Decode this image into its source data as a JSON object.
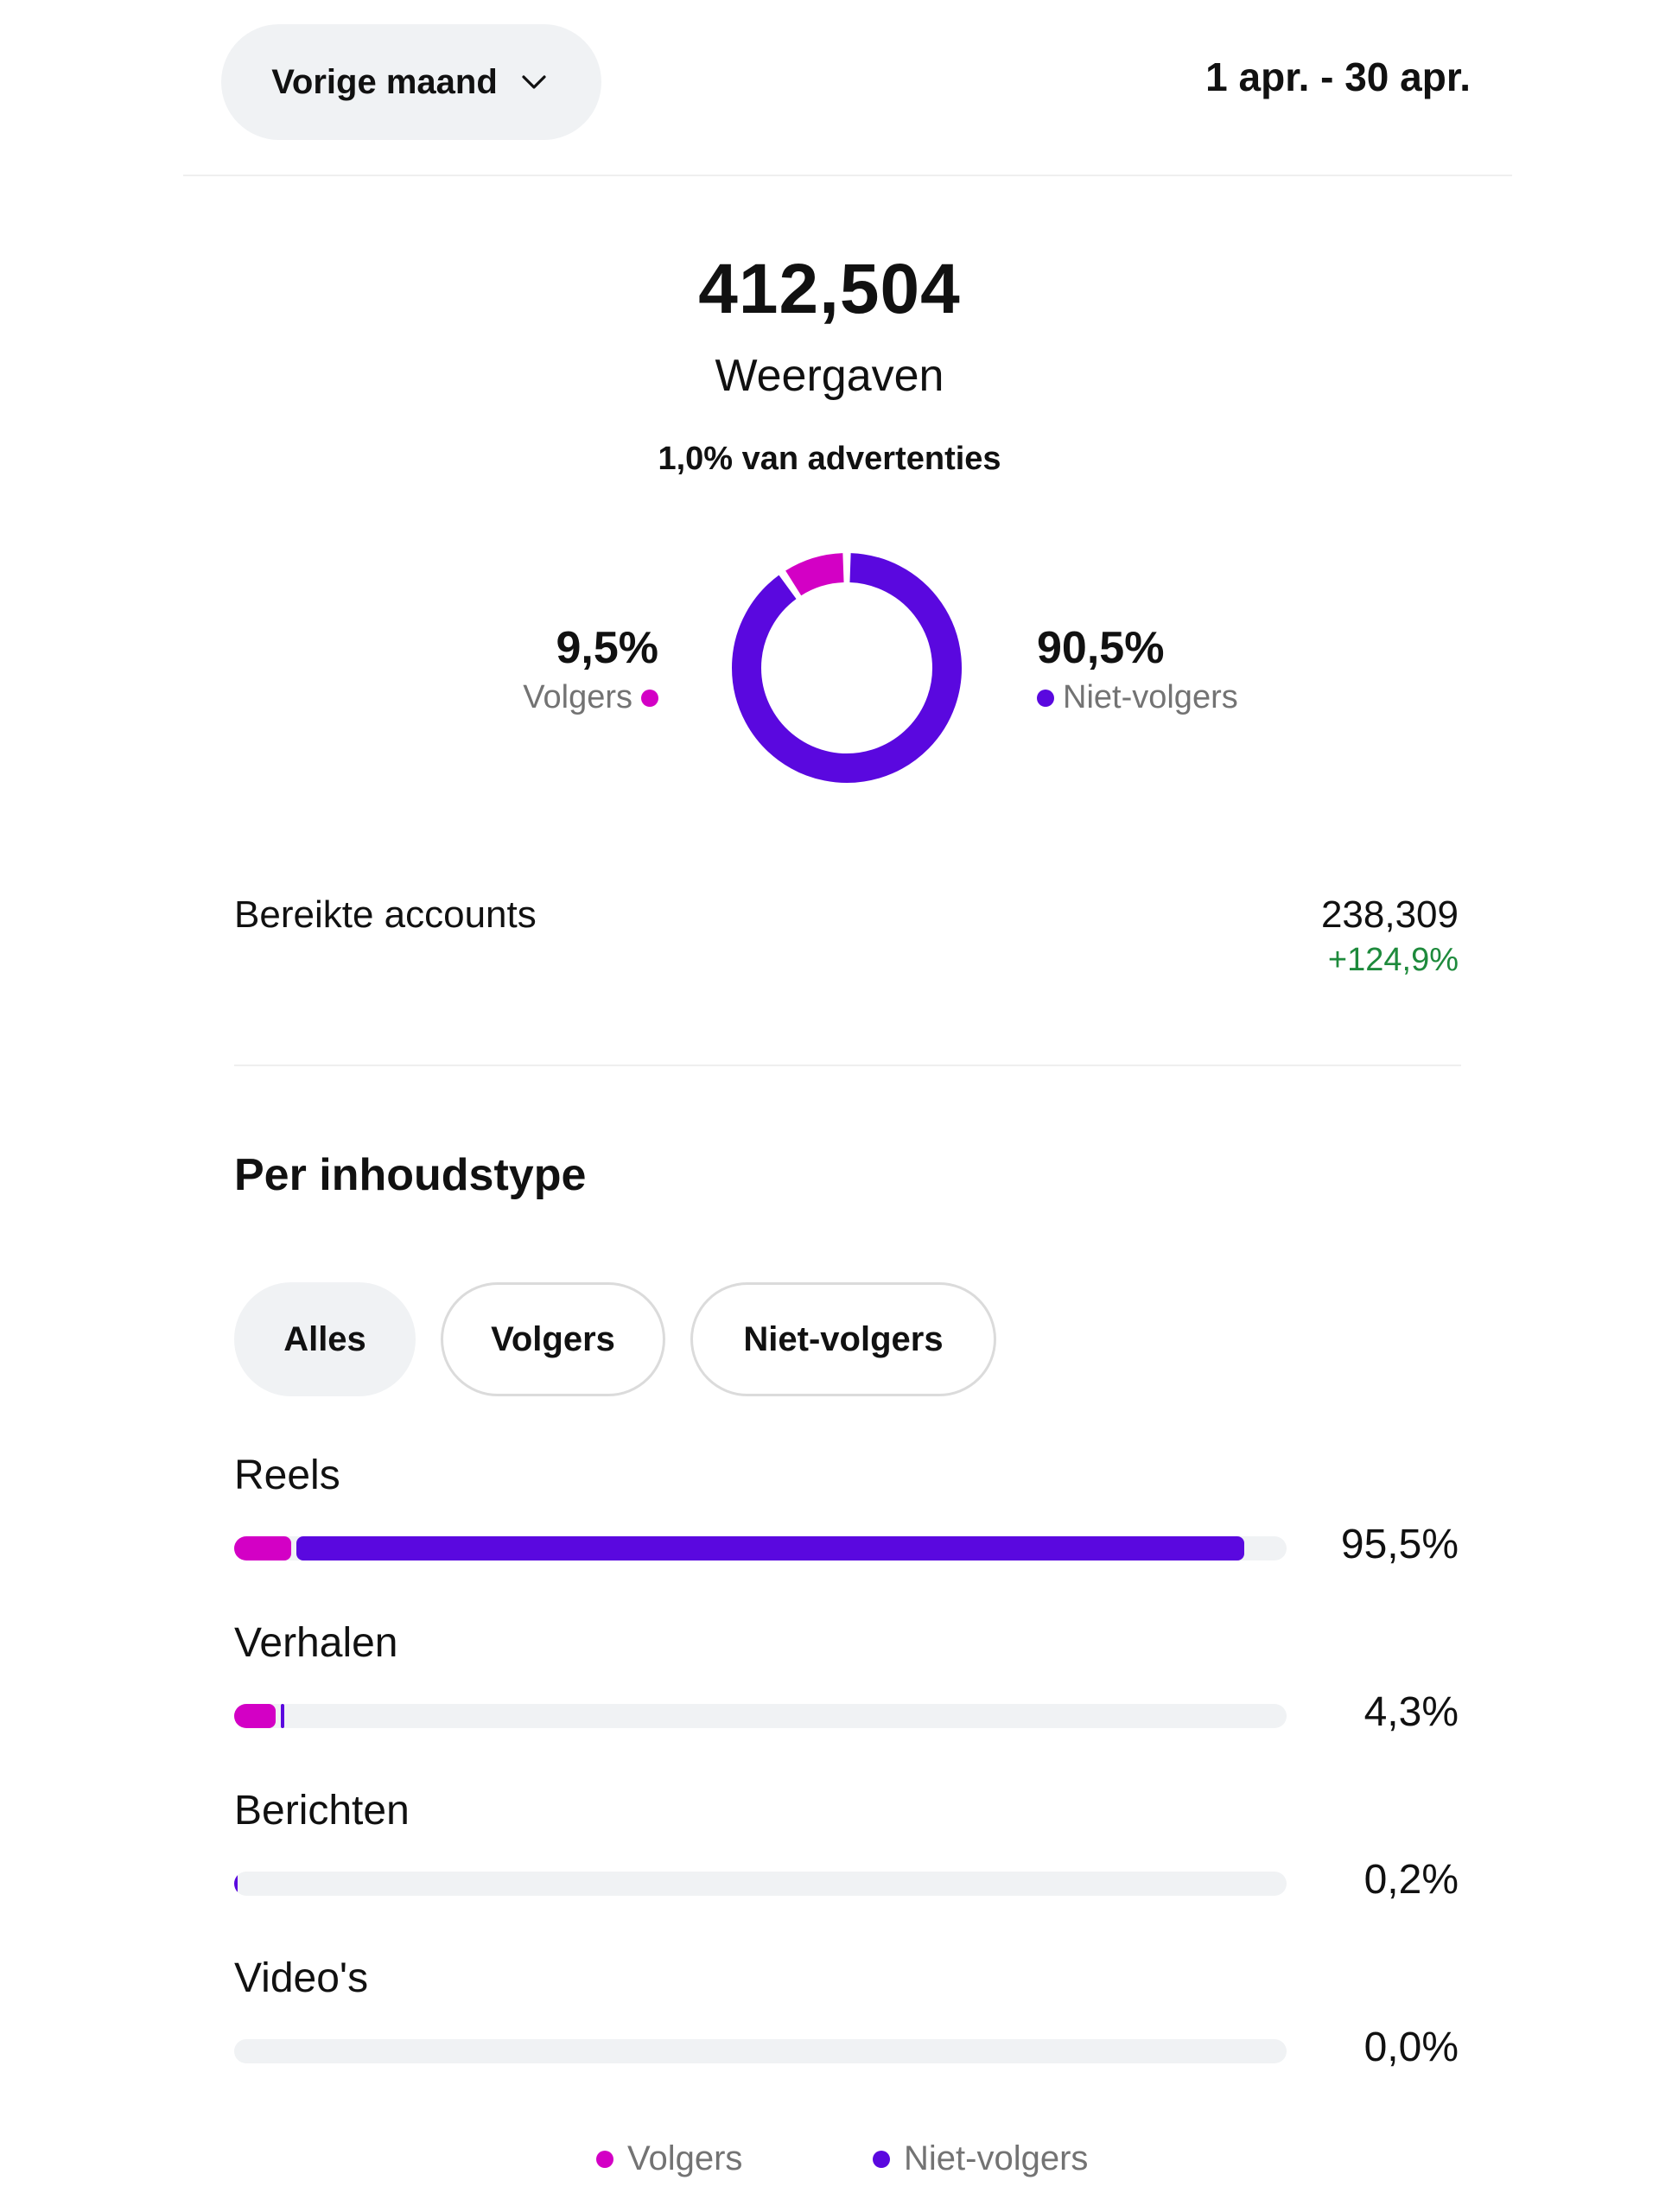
{
  "header": {
    "period_label": "Vorige maand",
    "date_range": "1 apr. - 30 apr."
  },
  "summary": {
    "total": "412,504",
    "total_label": "Weergaven",
    "ads_note": "1,0% van advertenties"
  },
  "donut": {
    "followers_pct_text": "9,5%",
    "followers_label": "Volgers",
    "nonfollowers_pct_text": "90,5%",
    "nonfollowers_label": "Niet-volgers",
    "followers_fraction": 0.095,
    "nonfollowers_fraction": 0.905
  },
  "reached": {
    "label": "Bereikte accounts",
    "value": "238,309",
    "change": "+124,9%"
  },
  "content_type": {
    "title": "Per inhoudstype",
    "filters": [
      "Alles",
      "Volgers",
      "Niet-volgers"
    ],
    "selected_filter": "Alles",
    "rows": [
      {
        "label": "Reels",
        "pct": "95,5%",
        "followers_fraction": 0.054,
        "nonfollowers_fraction": 0.901
      },
      {
        "label": "Verhalen",
        "pct": "4,3%",
        "followers_fraction": 0.039,
        "nonfollowers_fraction": 0.004
      },
      {
        "label": "Berichten",
        "pct": "0,2%",
        "followers_fraction": 0.0,
        "nonfollowers_fraction": 0.002
      },
      {
        "label": "Video's",
        "pct": "0,0%",
        "followers_fraction": 0.0,
        "nonfollowers_fraction": 0.0
      }
    ]
  },
  "legend": {
    "followers": "Volgers",
    "nonfollowers": "Niet-volgers"
  },
  "colors": {
    "followers": "#d300c5",
    "nonfollowers": "#5a08df",
    "positive": "#1e8a3c",
    "muted": "#737373",
    "track": "#f0f2f4"
  },
  "icons": {
    "dropdown": "chevron-down-icon"
  }
}
